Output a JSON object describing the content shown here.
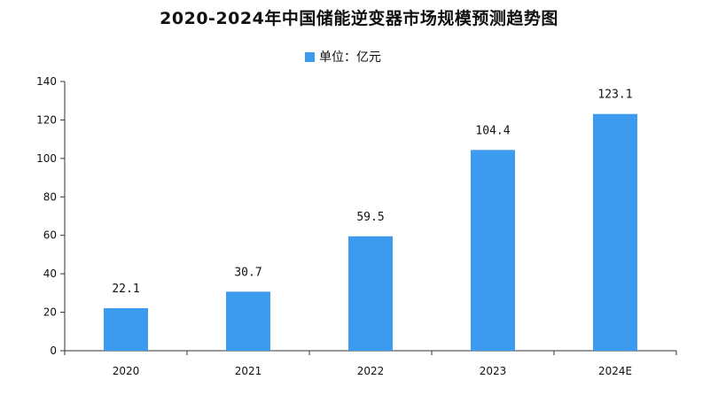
{
  "chart_data": {
    "type": "bar",
    "title": "2020-2024年中国储能逆变器市场规模预测趋势图",
    "legend": {
      "label": "单位：亿元",
      "placement": "top-center"
    },
    "categories": [
      "2020",
      "2021",
      "2022",
      "2023",
      "2024E"
    ],
    "series": [
      {
        "name": "单位：亿元",
        "values": [
          22.1,
          30.7,
          59.5,
          104.4,
          123.1
        ]
      }
    ],
    "data_labels": [
      "22.1",
      "30.7",
      "59.5",
      "104.4",
      "123.1"
    ],
    "ylim": [
      0,
      140
    ],
    "yticks": [
      0,
      20,
      40,
      60,
      80,
      100,
      120,
      140
    ],
    "grid": false,
    "xlabel": "",
    "ylabel": "",
    "bar_color": "#3d9bef"
  }
}
